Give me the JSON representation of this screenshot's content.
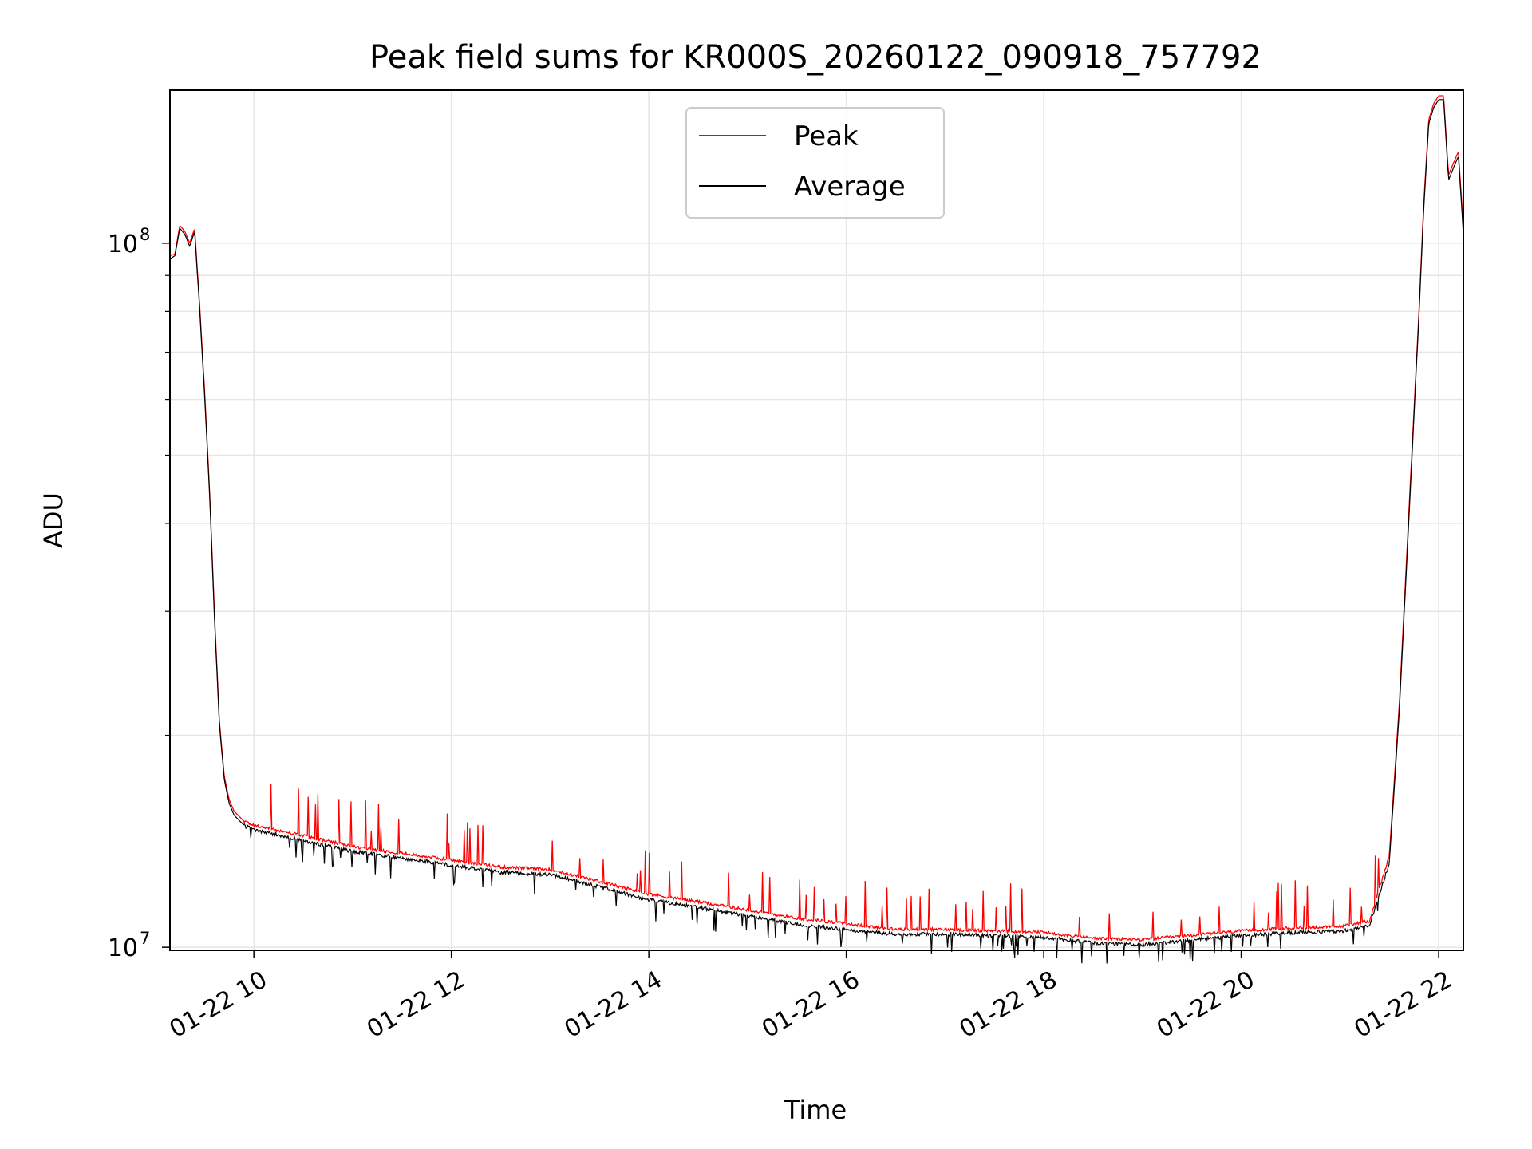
{
  "chart_data": {
    "type": "line",
    "title": "Peak field sums for KR000S_20260122_090918_757792",
    "xlabel": "Time",
    "ylabel": "ADU",
    "yscale": "log",
    "ylim": [
      9900000,
      165000000
    ],
    "xlim_hours": [
      9.15,
      22.25
    ],
    "x_ticks": [
      {
        "hour": 10,
        "label": "01-22 10"
      },
      {
        "hour": 12,
        "label": "01-22 12"
      },
      {
        "hour": 14,
        "label": "01-22 14"
      },
      {
        "hour": 16,
        "label": "01-22 16"
      },
      {
        "hour": 18,
        "label": "01-22 18"
      },
      {
        "hour": 20,
        "label": "01-22 20"
      },
      {
        "hour": 22,
        "label": "01-22 22"
      }
    ],
    "y_ticks": [
      {
        "value": 10000000,
        "base": "10",
        "exp": "7"
      },
      {
        "value": 100000000,
        "base": "10",
        "exp": "8"
      }
    ],
    "grid": true,
    "legend": {
      "location": "upper center",
      "entries": [
        "Peak",
        "Average"
      ]
    },
    "series": [
      {
        "name": "Peak",
        "color": "#ff0000",
        "x": [
          9.15,
          9.2,
          9.25,
          9.3,
          9.35,
          9.4,
          9.45,
          9.5,
          9.55,
          9.6,
          9.65,
          9.7,
          9.75,
          9.8,
          9.9,
          10.0,
          10.5,
          11.0,
          11.5,
          12.0,
          12.5,
          13.0,
          13.5,
          14.0,
          14.5,
          15.0,
          15.5,
          16.0,
          16.5,
          17.0,
          17.5,
          18.0,
          18.5,
          19.0,
          19.5,
          20.0,
          20.5,
          21.0,
          21.3,
          21.5,
          21.6,
          21.7,
          21.8,
          21.85,
          21.9,
          21.95,
          22.0,
          22.05,
          22.1,
          22.15,
          22.2,
          22.25
        ],
        "y": [
          96000000,
          96500000,
          106000000,
          104000000,
          100000000,
          105000000,
          82000000,
          62000000,
          45000000,
          30000000,
          21000000,
          17500000,
          16200000,
          15600000,
          15100000,
          14900000,
          14400000,
          13900000,
          13600000,
          13300000,
          13000000,
          12900000,
          12400000,
          11900000,
          11600000,
          11300000,
          11000000,
          10800000,
          10600000,
          10600000,
          10550000,
          10500000,
          10300000,
          10250000,
          10400000,
          10550000,
          10650000,
          10700000,
          10900000,
          13500000,
          22000000,
          42000000,
          80000000,
          115000000,
          150000000,
          158000000,
          162000000,
          162000000,
          125000000,
          130000000,
          135000000,
          105000000
        ]
      },
      {
        "name": "Average",
        "color": "#000000",
        "x": [
          9.15,
          9.2,
          9.25,
          9.3,
          9.35,
          9.4,
          9.45,
          9.5,
          9.55,
          9.6,
          9.65,
          9.7,
          9.75,
          9.8,
          9.9,
          10.0,
          10.5,
          11.0,
          11.5,
          12.0,
          12.5,
          13.0,
          13.5,
          14.0,
          14.5,
          15.0,
          15.5,
          16.0,
          16.5,
          17.0,
          17.5,
          18.0,
          18.5,
          19.0,
          19.5,
          20.0,
          20.5,
          21.0,
          21.3,
          21.5,
          21.6,
          21.7,
          21.8,
          21.85,
          21.9,
          21.95,
          22.0,
          22.05,
          22.1,
          22.15,
          22.2,
          22.25
        ],
        "y": [
          95000000,
          96000000,
          105000000,
          103000000,
          99000000,
          104000000,
          81000000,
          61000000,
          44500000,
          29500000,
          20800000,
          17300000,
          16000000,
          15400000,
          14900000,
          14700000,
          14200000,
          13700000,
          13400000,
          13100000,
          12800000,
          12700000,
          12200000,
          11700000,
          11400000,
          11100000,
          10800000,
          10600000,
          10450000,
          10450000,
          10400000,
          10350000,
          10150000,
          10100000,
          10250000,
          10400000,
          10500000,
          10550000,
          10750000,
          13200000,
          21500000,
          41000000,
          79000000,
          113000000,
          148000000,
          156000000,
          160000000,
          160000000,
          123000000,
          128000000,
          133000000,
          103000000
        ]
      }
    ],
    "spikes_note": ""
  }
}
